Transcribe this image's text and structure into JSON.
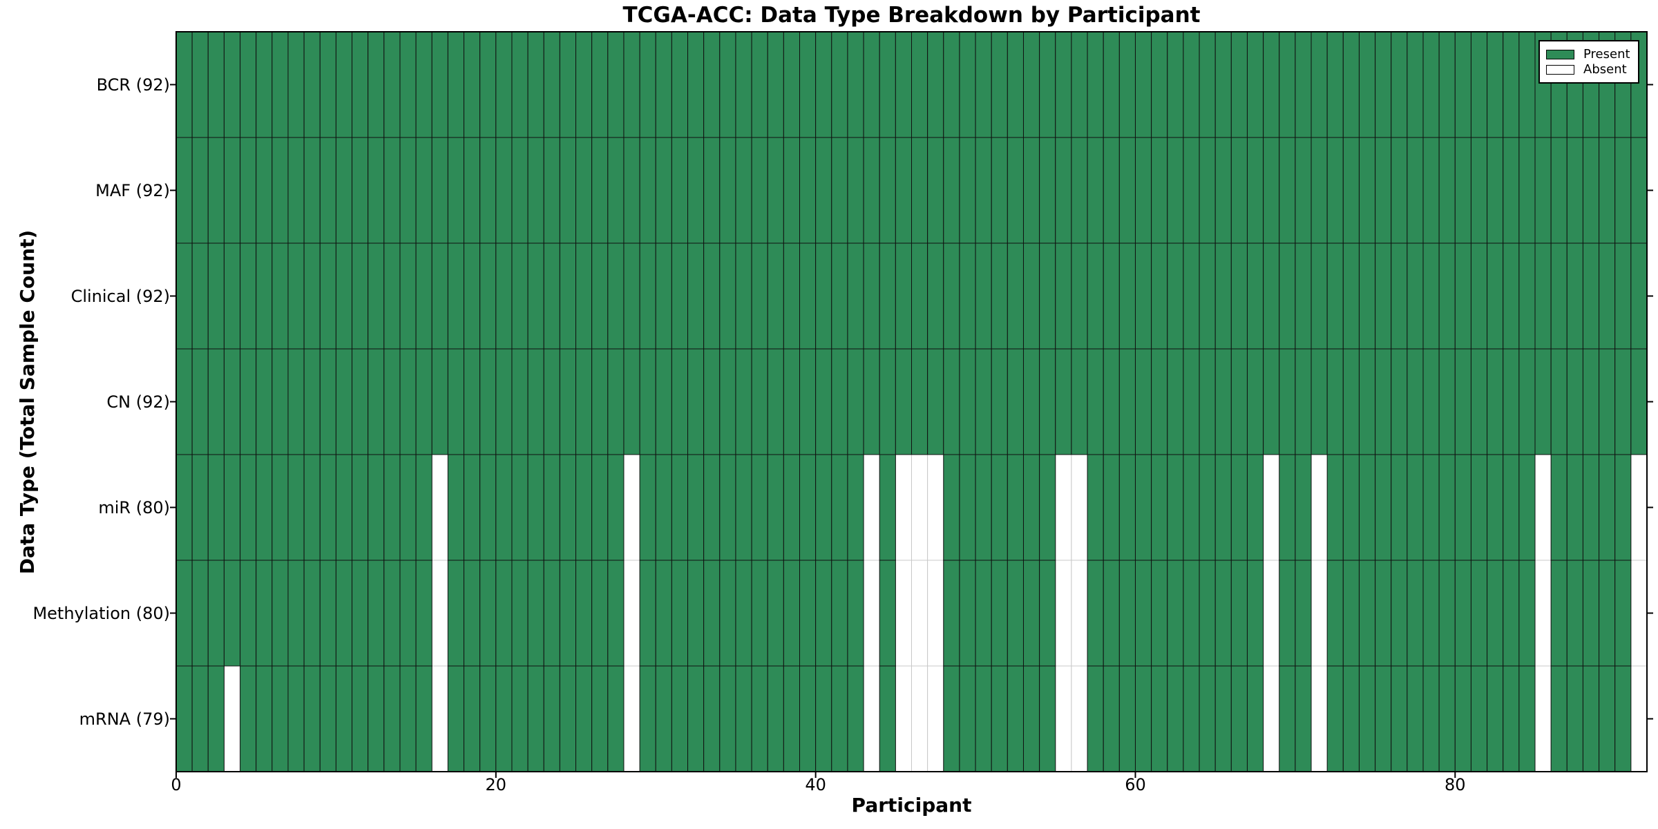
{
  "chart_data": {
    "type": "heatmap",
    "title": "TCGA-ACC: Data Type Breakdown by Participant",
    "xlabel": "Participant",
    "ylabel": "Data Type (Total Sample Count)",
    "x_ticks": [
      0,
      20,
      40,
      60,
      80
    ],
    "x_range": [
      0,
      92
    ],
    "n_participants": 92,
    "rows": [
      {
        "label": "BCR (92)",
        "name": "BCR",
        "present_count": 92,
        "absent_participants": []
      },
      {
        "label": "MAF (92)",
        "name": "MAF",
        "present_count": 92,
        "absent_participants": []
      },
      {
        "label": "Clinical (92)",
        "name": "Clinical",
        "present_count": 92,
        "absent_participants": []
      },
      {
        "label": "CN (92)",
        "name": "CN",
        "present_count": 92,
        "absent_participants": []
      },
      {
        "label": "miR (80)",
        "name": "miR",
        "present_count": 80,
        "absent_participants": [
          16,
          28,
          43,
          45,
          46,
          47,
          55,
          56,
          68,
          71,
          85,
          91
        ]
      },
      {
        "label": "Methylation (80)",
        "name": "Methylation",
        "present_count": 80,
        "absent_participants": [
          16,
          28,
          43,
          45,
          46,
          47,
          55,
          56,
          68,
          71,
          85,
          91
        ]
      },
      {
        "label": "mRNA (79)",
        "name": "mRNA",
        "present_count": 79,
        "absent_participants": [
          3,
          16,
          28,
          43,
          45,
          46,
          47,
          55,
          56,
          68,
          71,
          85,
          91
        ]
      }
    ],
    "legend": [
      {
        "label": "Present",
        "color": "#2e8b57"
      },
      {
        "label": "Absent",
        "color": "#ffffff"
      }
    ],
    "legend_position": "upper right",
    "grid": false,
    "colors": {
      "present": "#2e8b57",
      "absent": "#ffffff",
      "present_edge": "#101010",
      "absent_edge": "#c8c8c8",
      "frame": "#000000",
      "text": "#000000",
      "background": "#ffffff"
    }
  }
}
